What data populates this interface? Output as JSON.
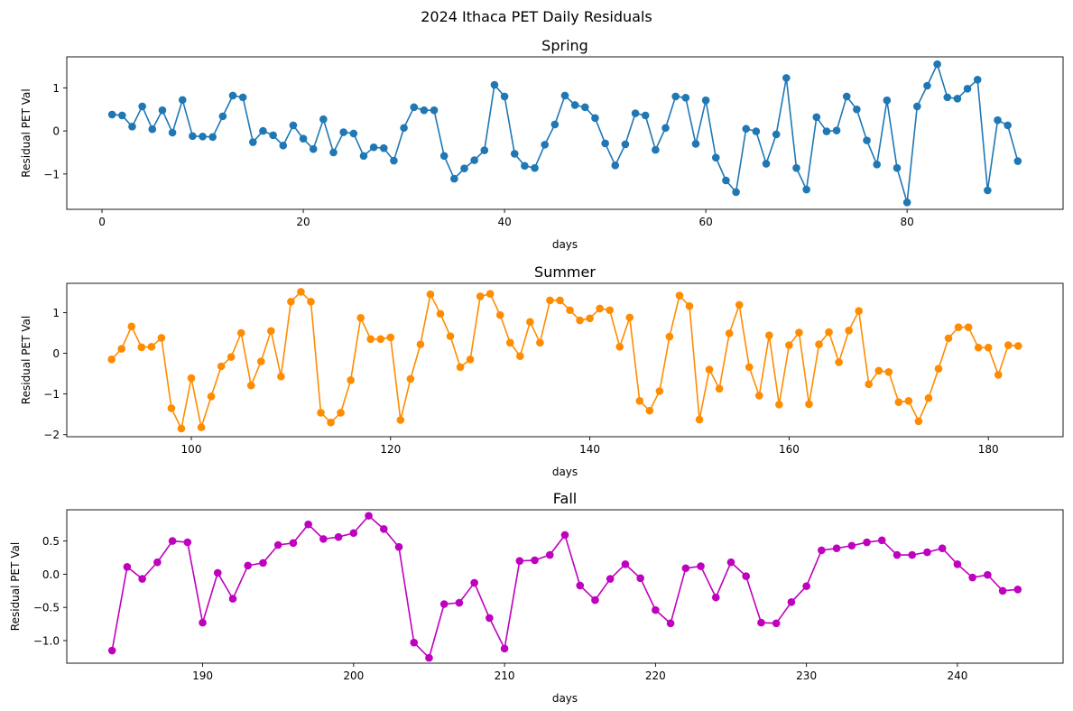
{
  "figure": {
    "title": "2024 Ithaca PET Daily Residuals"
  },
  "chart_data": [
    {
      "type": "line",
      "title": "Spring",
      "xlabel": "days",
      "ylabel": "Residual PET Val",
      "color": "#1f77b4",
      "xlim": [
        -3.5,
        95.5
      ],
      "ylim": [
        -1.82,
        1.72
      ],
      "xticks": [
        0,
        20,
        40,
        60,
        80
      ],
      "yticks": [
        -1,
        0,
        1
      ],
      "grid": false,
      "x_start": 1,
      "values": [
        0.38,
        0.36,
        0.1,
        0.57,
        0.04,
        0.48,
        -0.04,
        0.72,
        -0.12,
        -0.13,
        -0.14,
        0.34,
        0.82,
        0.78,
        -0.26,
        0.0,
        -0.1,
        -0.34,
        0.13,
        -0.18,
        -0.42,
        0.27,
        -0.5,
        -0.03,
        -0.06,
        -0.58,
        -0.38,
        -0.4,
        -0.69,
        0.07,
        0.55,
        0.48,
        0.48,
        -0.58,
        -1.11,
        -0.87,
        -0.68,
        -0.45,
        1.07,
        0.8,
        -0.53,
        -0.81,
        -0.86,
        -0.32,
        0.15,
        0.82,
        0.6,
        0.55,
        0.3,
        -0.29,
        -0.8,
        -0.31,
        0.41,
        0.36,
        -0.44,
        0.07,
        0.8,
        0.77,
        -0.3,
        0.71,
        -0.62,
        -1.15,
        -1.42,
        0.05,
        -0.01,
        -0.76,
        -0.08,
        1.23,
        -0.86,
        -1.36,
        0.32,
        -0.01,
        0.01,
        0.8,
        0.5,
        -0.22,
        -0.78,
        0.71,
        -0.86,
        -1.66,
        0.57,
        1.05,
        1.55,
        0.78,
        0.75,
        0.98,
        1.19,
        -1.38,
        0.25,
        0.13,
        -0.7
      ]
    },
    {
      "type": "line",
      "title": "Summer",
      "xlabel": "days",
      "ylabel": "Residual PET Val",
      "color": "#ff8c00",
      "xlim": [
        87.5,
        187.5
      ],
      "ylim": [
        -2.05,
        1.72
      ],
      "xticks": [
        100,
        120,
        140,
        160,
        180
      ],
      "yticks": [
        -2,
        -1,
        0,
        1
      ],
      "grid": false,
      "x_start": 92,
      "values": [
        -0.15,
        0.11,
        0.66,
        0.15,
        0.16,
        0.38,
        -1.35,
        -1.85,
        -0.61,
        -1.82,
        -1.06,
        -0.32,
        -0.09,
        0.5,
        -0.79,
        -0.2,
        0.55,
        -0.57,
        1.27,
        1.51,
        1.27,
        -1.46,
        -1.7,
        -1.46,
        -0.66,
        0.87,
        0.35,
        0.35,
        0.39,
        -1.64,
        -0.63,
        0.22,
        1.45,
        0.97,
        0.42,
        -0.34,
        -0.15,
        1.4,
        1.46,
        0.94,
        0.26,
        -0.07,
        0.77,
        0.26,
        1.3,
        1.3,
        1.06,
        0.81,
        0.86,
        1.1,
        1.06,
        0.16,
        0.88,
        -1.17,
        -1.41,
        -0.93,
        0.41,
        1.42,
        1.16,
        -1.63,
        -0.4,
        -0.87,
        0.49,
        1.19,
        -0.34,
        -1.04,
        0.44,
        -1.26,
        0.2,
        0.51,
        -1.25,
        0.22,
        0.52,
        -0.22,
        0.56,
        1.04,
        -0.76,
        -0.43,
        -0.46,
        -1.2,
        -1.17,
        -1.67,
        -1.1,
        -0.38,
        0.37,
        0.64,
        0.64,
        0.14,
        0.14,
        -0.53,
        0.2,
        0.18
      ]
    },
    {
      "type": "line",
      "title": "Fall",
      "xlabel": "days",
      "ylabel": "Residual PET Val",
      "color": "#bf00bf",
      "xlim": [
        181,
        247
      ],
      "ylim": [
        -1.34,
        0.97
      ],
      "xticks": [
        190,
        200,
        210,
        220,
        230,
        240
      ],
      "yticks": [
        -1.0,
        -0.5,
        0.0,
        0.5
      ],
      "grid": false,
      "x_start": 184,
      "values": [
        -1.15,
        0.11,
        -0.07,
        0.18,
        0.5,
        0.48,
        -0.73,
        0.02,
        -0.37,
        0.13,
        0.17,
        0.44,
        0.47,
        0.75,
        0.53,
        0.56,
        0.62,
        0.88,
        0.68,
        0.41,
        -1.03,
        -1.26,
        -0.45,
        -0.43,
        -0.13,
        -0.66,
        -1.12,
        0.2,
        0.21,
        0.29,
        0.59,
        -0.17,
        -0.39,
        -0.07,
        0.15,
        -0.06,
        -0.54,
        -0.74,
        0.09,
        0.12,
        -0.35,
        0.18,
        -0.03,
        -0.73,
        -0.74,
        -0.42,
        -0.18,
        0.36,
        0.39,
        0.43,
        0.48,
        0.51,
        0.29,
        0.29,
        0.33,
        0.39,
        0.15,
        -0.05,
        -0.01,
        -0.25,
        -0.23
      ]
    }
  ]
}
